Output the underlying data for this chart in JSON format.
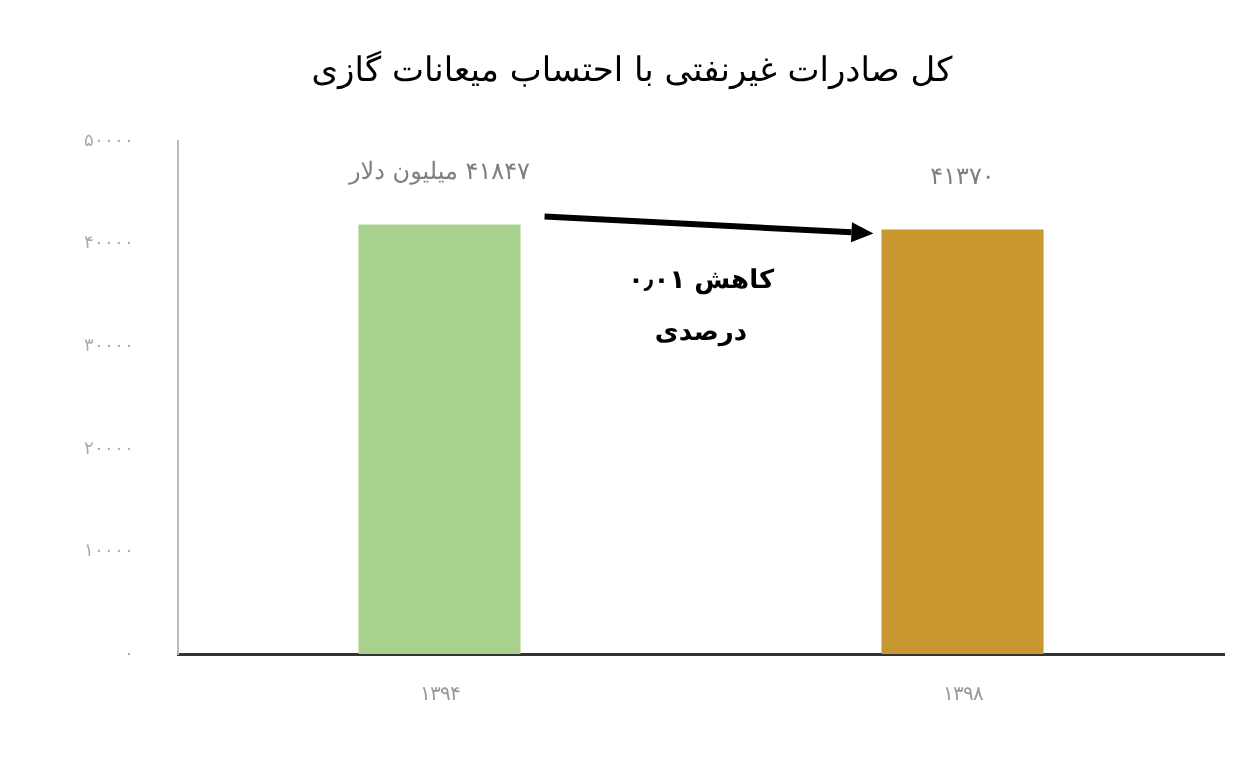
{
  "chart_data": {
    "type": "bar",
    "title": "کل صادرات غیرنفتی با احتساب میعانات گازی",
    "categories": [
      "۱۳۹۴",
      "۱۳۹۸"
    ],
    "values": [
      41847,
      41370
    ],
    "colors": [
      "#a9d18e",
      "#c9972f"
    ],
    "value_labels": [
      "۴۱۸۴۷ میلیون دلار",
      "۴۱۳۷۰"
    ],
    "ylim": [
      0,
      50000
    ],
    "yticks": [
      {
        "value": 0,
        "label": "۰"
      },
      {
        "value": 10000,
        "label": "۱۰۰۰۰"
      },
      {
        "value": 20000,
        "label": "۲۰۰۰۰"
      },
      {
        "value": 30000,
        "label": "۳۰۰۰۰"
      },
      {
        "value": 40000,
        "label": "۴۰۰۰۰"
      },
      {
        "value": 50000,
        "label": "۵۰۰۰۰"
      }
    ],
    "grid": false,
    "annotations": [
      "کاهش ۰٫۰۱ درصدی"
    ]
  }
}
